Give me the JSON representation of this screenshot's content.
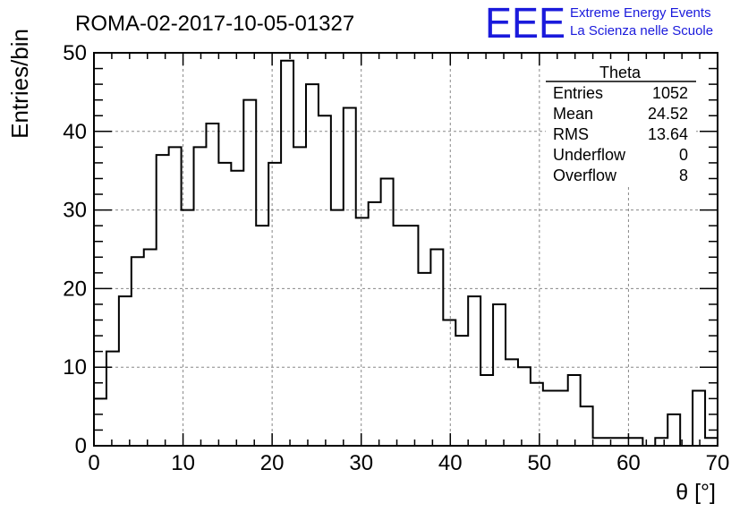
{
  "header": {
    "title": "ROMA-02-2017-10-05-01327",
    "logo_text": "EEE",
    "logo_line1": "Extreme Energy Events",
    "logo_line2": "La Scienza nelle Scuole",
    "logo_color": "#1a1adc"
  },
  "stats": {
    "title": "Theta",
    "rows": [
      {
        "label": "Entries",
        "value": "1052"
      },
      {
        "label": "Mean",
        "value": "24.52"
      },
      {
        "label": "RMS",
        "value": "13.64"
      },
      {
        "label": "Underflow",
        "value": "0"
      },
      {
        "label": "Overflow",
        "value": "8"
      }
    ]
  },
  "chart_data": {
    "type": "bar",
    "histogram": true,
    "xlabel": "θ [°]",
    "ylabel": "Entries/bin",
    "xlim": [
      0,
      70
    ],
    "ylim": [
      0,
      50
    ],
    "grid": true,
    "bin_width": 1.4,
    "bin_edges_start": 0,
    "xticks": [
      "0",
      "10",
      "20",
      "30",
      "40",
      "50",
      "60",
      "70"
    ],
    "yticks": [
      "0",
      "10",
      "20",
      "30",
      "40",
      "50"
    ],
    "values": [
      6,
      12,
      19,
      24,
      25,
      37,
      38,
      30,
      38,
      41,
      36,
      35,
      44,
      28,
      36,
      49,
      38,
      46,
      42,
      30,
      43,
      29,
      31,
      34,
      28,
      28,
      22,
      25,
      16,
      14,
      19,
      9,
      18,
      11,
      10,
      8,
      7,
      7,
      9,
      5,
      1,
      1,
      1,
      1,
      0,
      1,
      4,
      0,
      7,
      1
    ]
  }
}
